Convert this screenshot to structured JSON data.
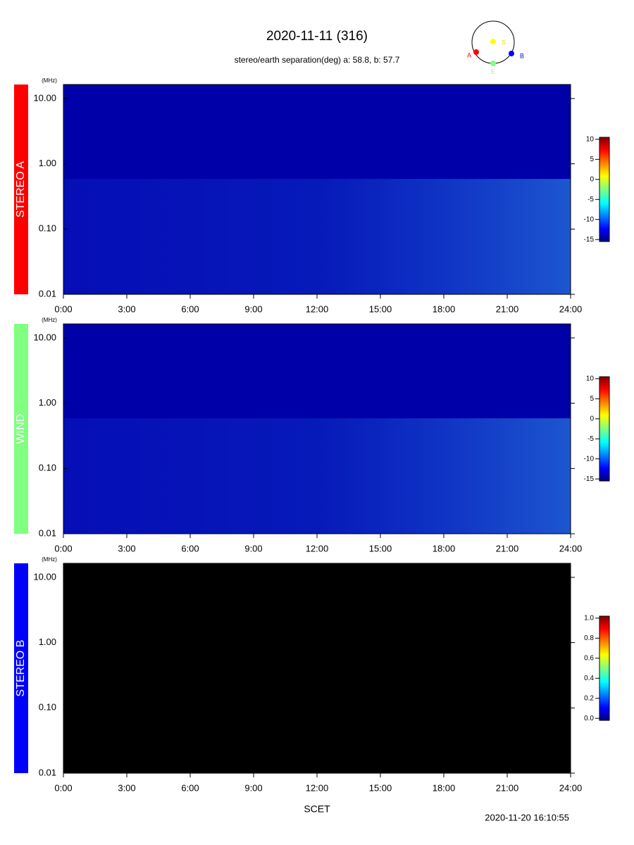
{
  "header": {
    "title": "2020-11-11 (316)",
    "subtitle": "stereo/earth separation(deg) a:  58.8, b:  57.7",
    "orbit_labels": {
      "a": "A",
      "s": "S",
      "b": "B",
      "e": "E"
    }
  },
  "chart_data": [
    {
      "type": "spectrogram",
      "label": "STEREO A",
      "label_color": "#ff0000",
      "background": "#0000a8",
      "y_unit": "(MHz)",
      "log_y": true,
      "ylim": [
        0.01,
        16.4
      ],
      "yticks": [
        {
          "value": 10,
          "label": "10.00"
        },
        {
          "value": 1,
          "label": "1.00"
        },
        {
          "value": 0.1,
          "label": "0.10"
        },
        {
          "value": 0.01,
          "label": "0.01"
        }
      ],
      "xlim": [
        0,
        24
      ],
      "xticks": [
        {
          "value": 0,
          "label": "0:00"
        },
        {
          "value": 3,
          "label": "3:00"
        },
        {
          "value": 6,
          "label": "6:00"
        },
        {
          "value": 9,
          "label": "9:00"
        },
        {
          "value": 12,
          "label": "12:00"
        },
        {
          "value": 15,
          "label": "15:00"
        },
        {
          "value": 18,
          "label": "18:00"
        },
        {
          "value": 21,
          "label": "21:00"
        },
        {
          "value": 24,
          "label": "24:00"
        }
      ],
      "clim": [
        -15.5,
        10.5
      ],
      "cticks": [
        10,
        5,
        0,
        -5,
        -10,
        -15
      ]
    },
    {
      "type": "spectrogram",
      "label": "WIND",
      "label_color": "#80ff80",
      "background": "#0000a8",
      "y_unit": "(MHz)",
      "log_y": true,
      "ylim": [
        0.01,
        16.4
      ],
      "yticks": [
        {
          "value": 10,
          "label": "10.00"
        },
        {
          "value": 1,
          "label": "1.00"
        },
        {
          "value": 0.1,
          "label": "0.10"
        },
        {
          "value": 0.01,
          "label": "0.01"
        }
      ],
      "xlim": [
        0,
        24
      ],
      "xticks": [
        {
          "value": 0,
          "label": "0:00"
        },
        {
          "value": 3,
          "label": "3:00"
        },
        {
          "value": 6,
          "label": "6:00"
        },
        {
          "value": 9,
          "label": "9:00"
        },
        {
          "value": 12,
          "label": "12:00"
        },
        {
          "value": 15,
          "label": "15:00"
        },
        {
          "value": 18,
          "label": "18:00"
        },
        {
          "value": 21,
          "label": "21:00"
        },
        {
          "value": 24,
          "label": "24:00"
        }
      ],
      "clim": [
        -15.5,
        10.5
      ],
      "cticks": [
        10,
        5,
        0,
        -5,
        -10,
        -15
      ]
    },
    {
      "type": "spectrogram",
      "label": "STEREO B",
      "label_color": "#0000ff",
      "background": "#000000",
      "y_unit": "(MHz)",
      "log_y": true,
      "ylim": [
        0.01,
        16.4
      ],
      "yticks": [
        {
          "value": 10,
          "label": "10.00"
        },
        {
          "value": 1,
          "label": "1.00"
        },
        {
          "value": 0.1,
          "label": "0.10"
        },
        {
          "value": 0.01,
          "label": "0.01"
        }
      ],
      "xlim": [
        0,
        24
      ],
      "xticks": [
        {
          "value": 0,
          "label": "0:00"
        },
        {
          "value": 3,
          "label": "3:00"
        },
        {
          "value": 6,
          "label": "6:00"
        },
        {
          "value": 9,
          "label": "9:00"
        },
        {
          "value": 12,
          "label": "12:00"
        },
        {
          "value": 15,
          "label": "15:00"
        },
        {
          "value": 18,
          "label": "18:00"
        },
        {
          "value": 21,
          "label": "21:00"
        },
        {
          "value": 24,
          "label": "24:00"
        }
      ],
      "clim": [
        -0.02,
        1.02
      ],
      "cticks": [
        {
          "value": 1,
          "label": "1.0"
        },
        {
          "value": 0.8,
          "label": "0.8"
        },
        {
          "value": 0.6,
          "label": "0.6"
        },
        {
          "value": 0.4,
          "label": "0.4"
        },
        {
          "value": 0.2,
          "label": "0.2"
        },
        {
          "value": 0,
          "label": "0.0"
        }
      ]
    }
  ],
  "footer": {
    "xlabel": "SCET",
    "timestamp": "2020-11-20 16:10:55"
  }
}
